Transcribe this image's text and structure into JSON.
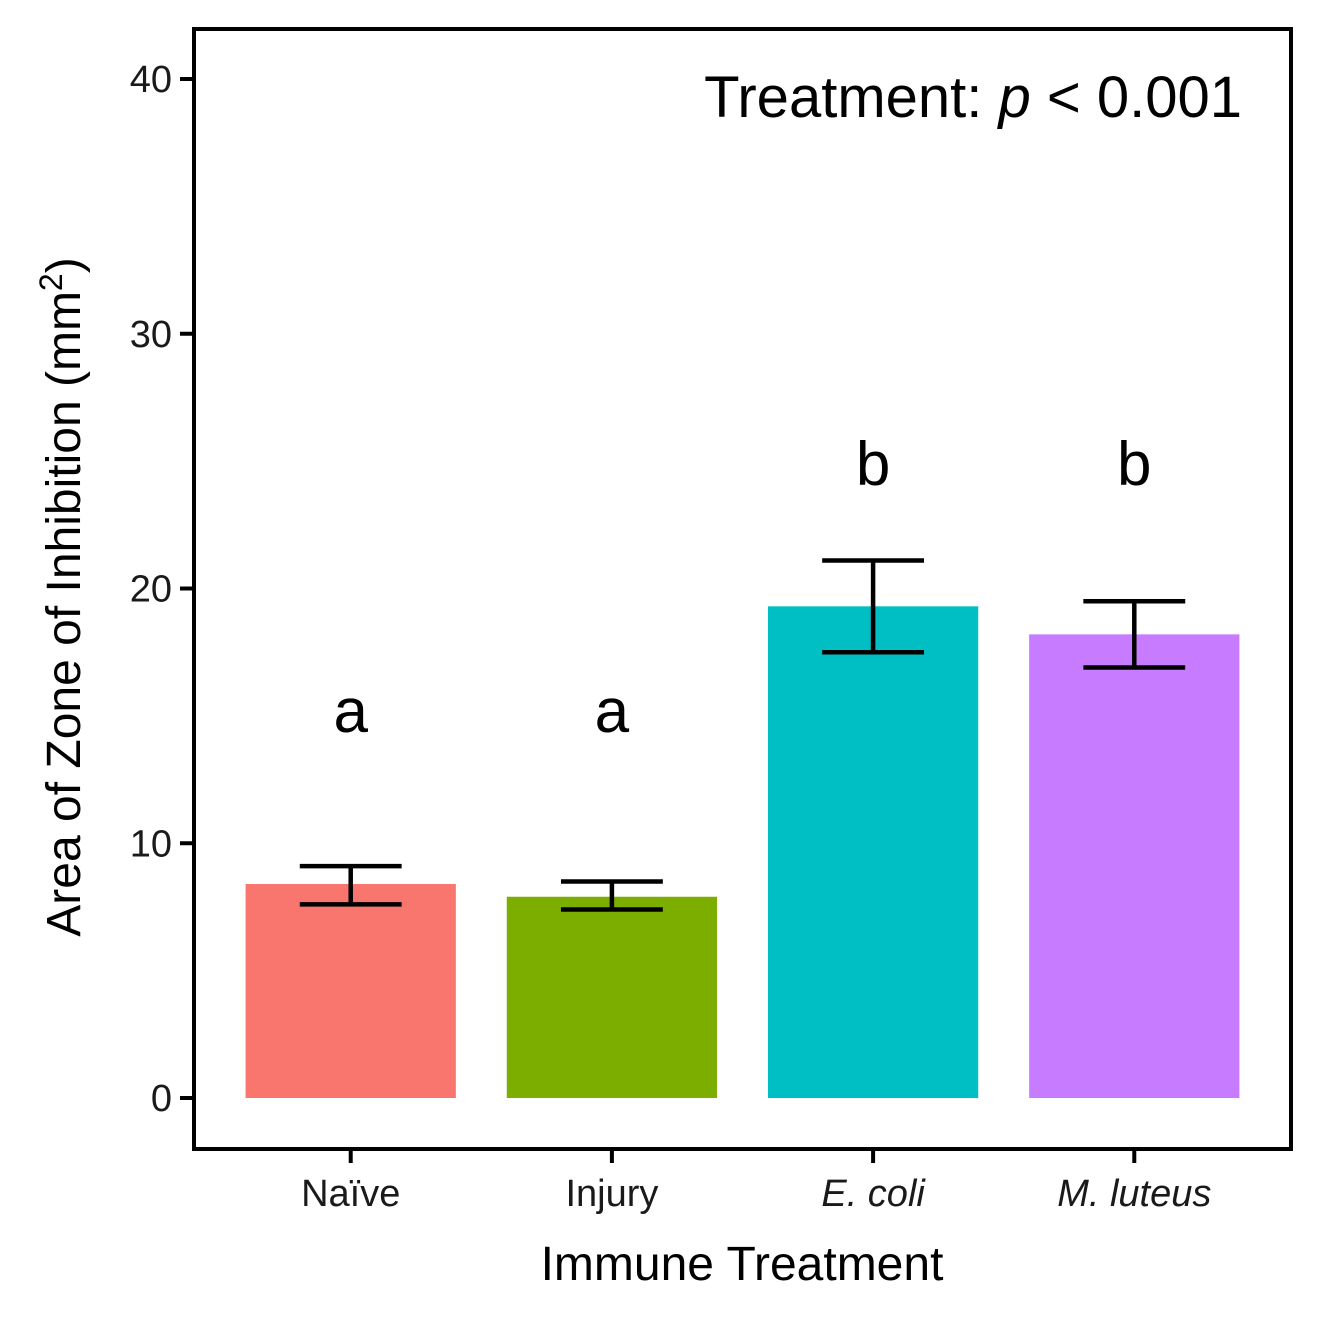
{
  "chart_data": {
    "type": "bar",
    "categories": [
      "Naïve",
      "Injury",
      "E. coli",
      "M. luteus"
    ],
    "categories_italic": [
      false,
      false,
      true,
      true
    ],
    "values": [
      8.4,
      7.9,
      19.3,
      18.2
    ],
    "error_low": [
      7.6,
      7.4,
      17.5,
      16.9
    ],
    "error_high": [
      9.1,
      8.5,
      21.1,
      19.5
    ],
    "significance_letters": [
      "a",
      "a",
      "b",
      "b"
    ],
    "colors": [
      "#F8766D",
      "#7CAE00",
      "#00BFC4",
      "#C77CFF"
    ],
    "xlabel": "Immune Treatment",
    "ylabel_main": "Area of Zone of Inhibition (mm",
    "ylabel_sup": "2",
    "ylabel_close": ")",
    "ylim": [
      -2,
      42
    ],
    "yticks": [
      0,
      10,
      20,
      30,
      40
    ],
    "ytick_labels": [
      "0",
      "10",
      "20",
      "30",
      "40"
    ],
    "annotation": {
      "prefix": "Treatment: ",
      "p": "p",
      "suffix": " < 0.001"
    },
    "grid": false,
    "legend": "none"
  }
}
